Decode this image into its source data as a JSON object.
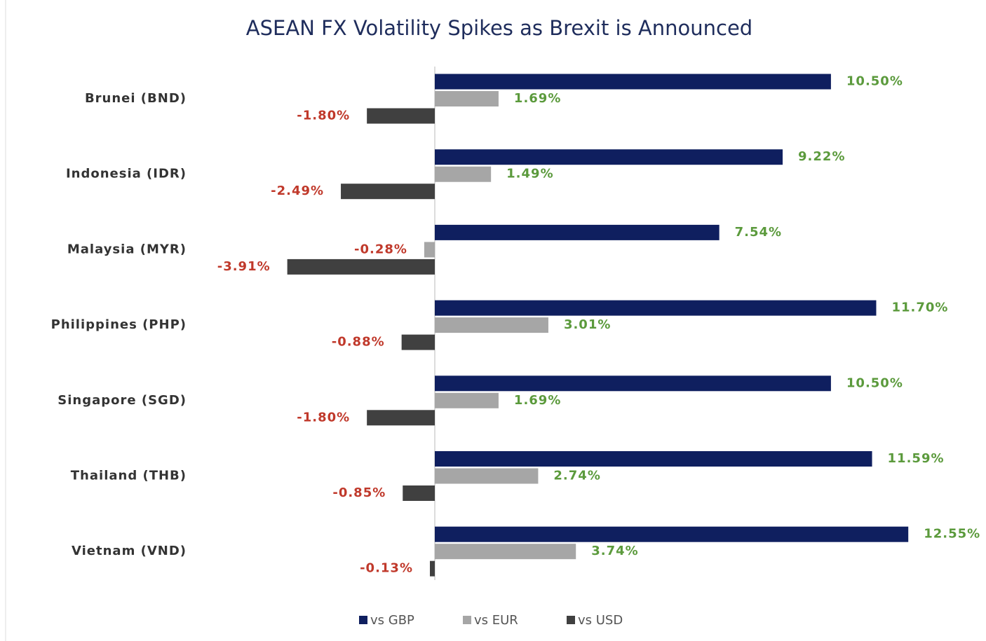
{
  "chart_data": {
    "type": "bar",
    "orientation": "horizontal",
    "title": "ASEAN FX Volatility Spikes as Brexit is Announced",
    "categories": [
      "Brunei (BND)",
      "Indonesia (IDR)",
      "Malaysia (MYR)",
      "Philippines (PHP)",
      "Singapore (SGD)",
      "Thailand (THB)",
      "Vietnam (VND)"
    ],
    "series": [
      {
        "name": "vs GBP",
        "color": "#0f1f5f",
        "values": [
          10.5,
          9.22,
          7.54,
          11.7,
          10.5,
          11.59,
          12.55
        ],
        "value_labels": [
          "10.50%",
          "9.22%",
          "7.54%",
          "11.70%",
          "10.50%",
          "11.59%",
          "12.55%"
        ]
      },
      {
        "name": "vs EUR",
        "color": "#a6a6a6",
        "values": [
          1.69,
          1.49,
          -0.28,
          3.01,
          1.69,
          2.74,
          3.74
        ],
        "value_labels": [
          "1.69%",
          "1.49%",
          "-0.28%",
          "3.01%",
          "1.69%",
          "2.74%",
          "3.74%"
        ]
      },
      {
        "name": "vs USD",
        "color": "#404040",
        "values": [
          -1.8,
          -2.49,
          -3.91,
          -0.88,
          -1.8,
          -0.85,
          -0.13
        ],
        "value_labels": [
          "-1.80%",
          "-2.49%",
          "-3.91%",
          "-0.88%",
          "-1.80%",
          "-0.85%",
          "-0.13%"
        ]
      }
    ]
  }
}
